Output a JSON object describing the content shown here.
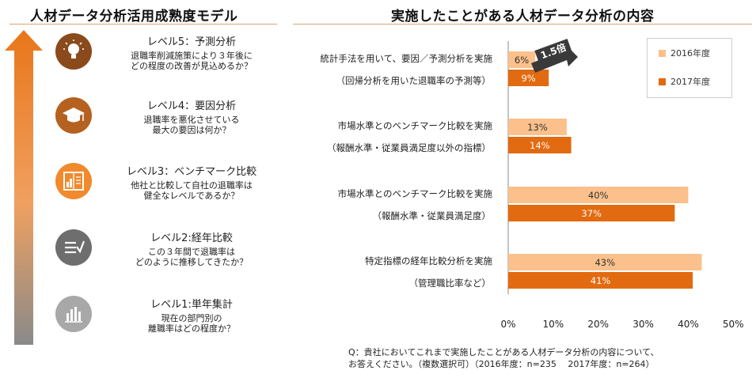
{
  "left": {
    "title": "人材データ分析活用成熟度モデル",
    "levels": [
      {
        "title": "レベル5：予測分析",
        "desc1": "退職率削減施策により３年後に",
        "desc2": "どの程度の改善が見込めるか？",
        "icon": "lightbulb-icon",
        "color": "#8a4a1c"
      },
      {
        "title": "レベル4：要因分析",
        "desc1": "退職率を悪化させている",
        "desc2": "最大の要因は何か？",
        "icon": "graduation-cap-icon",
        "color": "#b5611f"
      },
      {
        "title": "レベル3：ベンチマーク比較",
        "desc1": "他社と比較して自社の退職率は",
        "desc2": "健全なレベルであるか？",
        "icon": "book-chart-icon",
        "color": "#f08a2c"
      },
      {
        "title": "レベル2:経年比較",
        "desc1": "この３年間で退職率は",
        "desc2": "どのように推移してきたか？",
        "icon": "list-check-icon",
        "color": "#6e6e6e"
      },
      {
        "title": "レベル1:単年集計",
        "desc1": "現在の部門別の",
        "desc2": "離職率はどの程度か？",
        "icon": "bar-chart-icon",
        "color": "#a8a8a8"
      }
    ]
  },
  "right": {
    "title": "実施したことがある人材データ分析の内容",
    "badge": "1.5倍",
    "note_line1": "Q：貴社においてこれまで実施したことがある人材データ分析の内容について、",
    "note_line2": "お答えください。（複数選択可）（2016年度：n=235　 2017年度：n=264）"
  },
  "colors": {
    "series_2016": "#fbc08b",
    "series_2017": "#e26a10",
    "accent": "#e8761a"
  },
  "chart_data": {
    "type": "bar",
    "orientation": "horizontal",
    "categories": [
      {
        "line1": "統計手法を用いて、要因／予測分析を実施",
        "line2": "（回帰分析を用いた退職率の予測等）"
      },
      {
        "line1": "市場水準とのベンチマーク比較を実施",
        "line2": "（報酬水準・従業員満足度以外の指標）"
      },
      {
        "line1": "市場水準とのベンチマーク比較を実施",
        "line2": "（報酬水準・従業員満足度）"
      },
      {
        "line1": "特定指標の経年比較分析を実施",
        "line2": "（管理職比率など）"
      }
    ],
    "series": [
      {
        "name": "2016年度",
        "values": [
          6,
          13,
          40,
          43
        ]
      },
      {
        "name": "2017年度",
        "values": [
          9,
          14,
          37,
          41
        ]
      }
    ],
    "xlim": [
      0,
      50
    ],
    "xticks": [
      "0%",
      "10%",
      "20%",
      "30%",
      "40%",
      "50%"
    ],
    "unit": "%",
    "grid": false,
    "legend": "top-right"
  }
}
